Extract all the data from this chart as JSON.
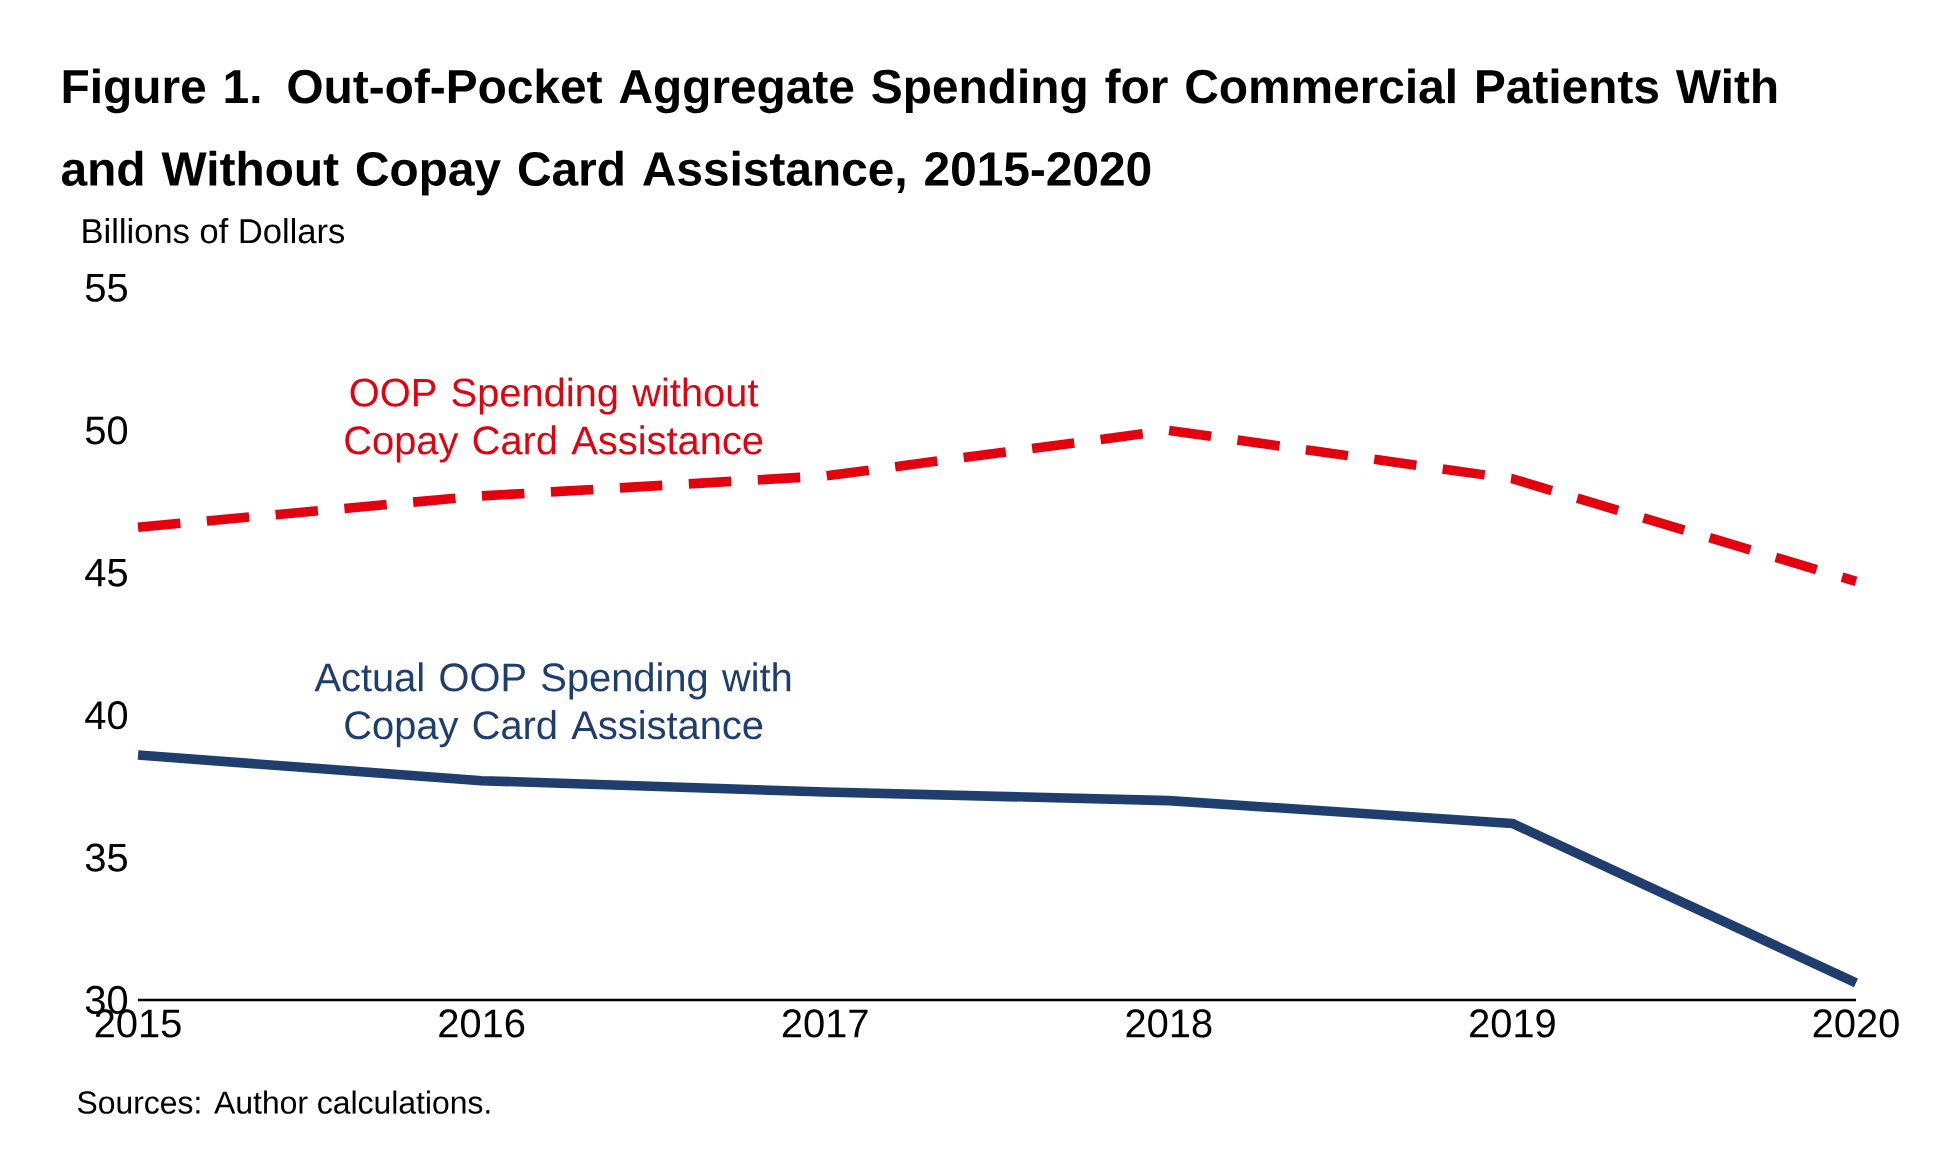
{
  "chart_data": {
    "type": "line",
    "title": "Figure 1. Out-of-Pocket Aggregate Spending for Commercial Patients With and Without Copay Card Assistance, 2015-2020",
    "ylabel": "Billions of Dollars",
    "x": [
      2015,
      2016,
      2017,
      2018,
      2019,
      2020
    ],
    "series": [
      {
        "name": "OOP Spending without Copay Card Assistance",
        "color": "#e3000f",
        "line_style": "dashed",
        "values": [
          46.6,
          47.7,
          48.4,
          50.0,
          48.3,
          44.7
        ]
      },
      {
        "name": "Actual OOP Spending with Copay Card Assistance",
        "color": "#1f3e6e",
        "line_style": "solid",
        "values": [
          38.6,
          37.7,
          37.3,
          37.0,
          36.2,
          30.6
        ]
      }
    ],
    "xlim": [
      2015,
      2020
    ],
    "xticks": [
      2015,
      2016,
      2017,
      2018,
      2019,
      2020
    ],
    "ylim": [
      30,
      55
    ],
    "yticks": [
      30,
      35,
      40,
      45,
      50,
      55
    ],
    "grid": false,
    "legend": false,
    "marker": "none",
    "annotations": [
      "Sources: Author calculations."
    ]
  }
}
